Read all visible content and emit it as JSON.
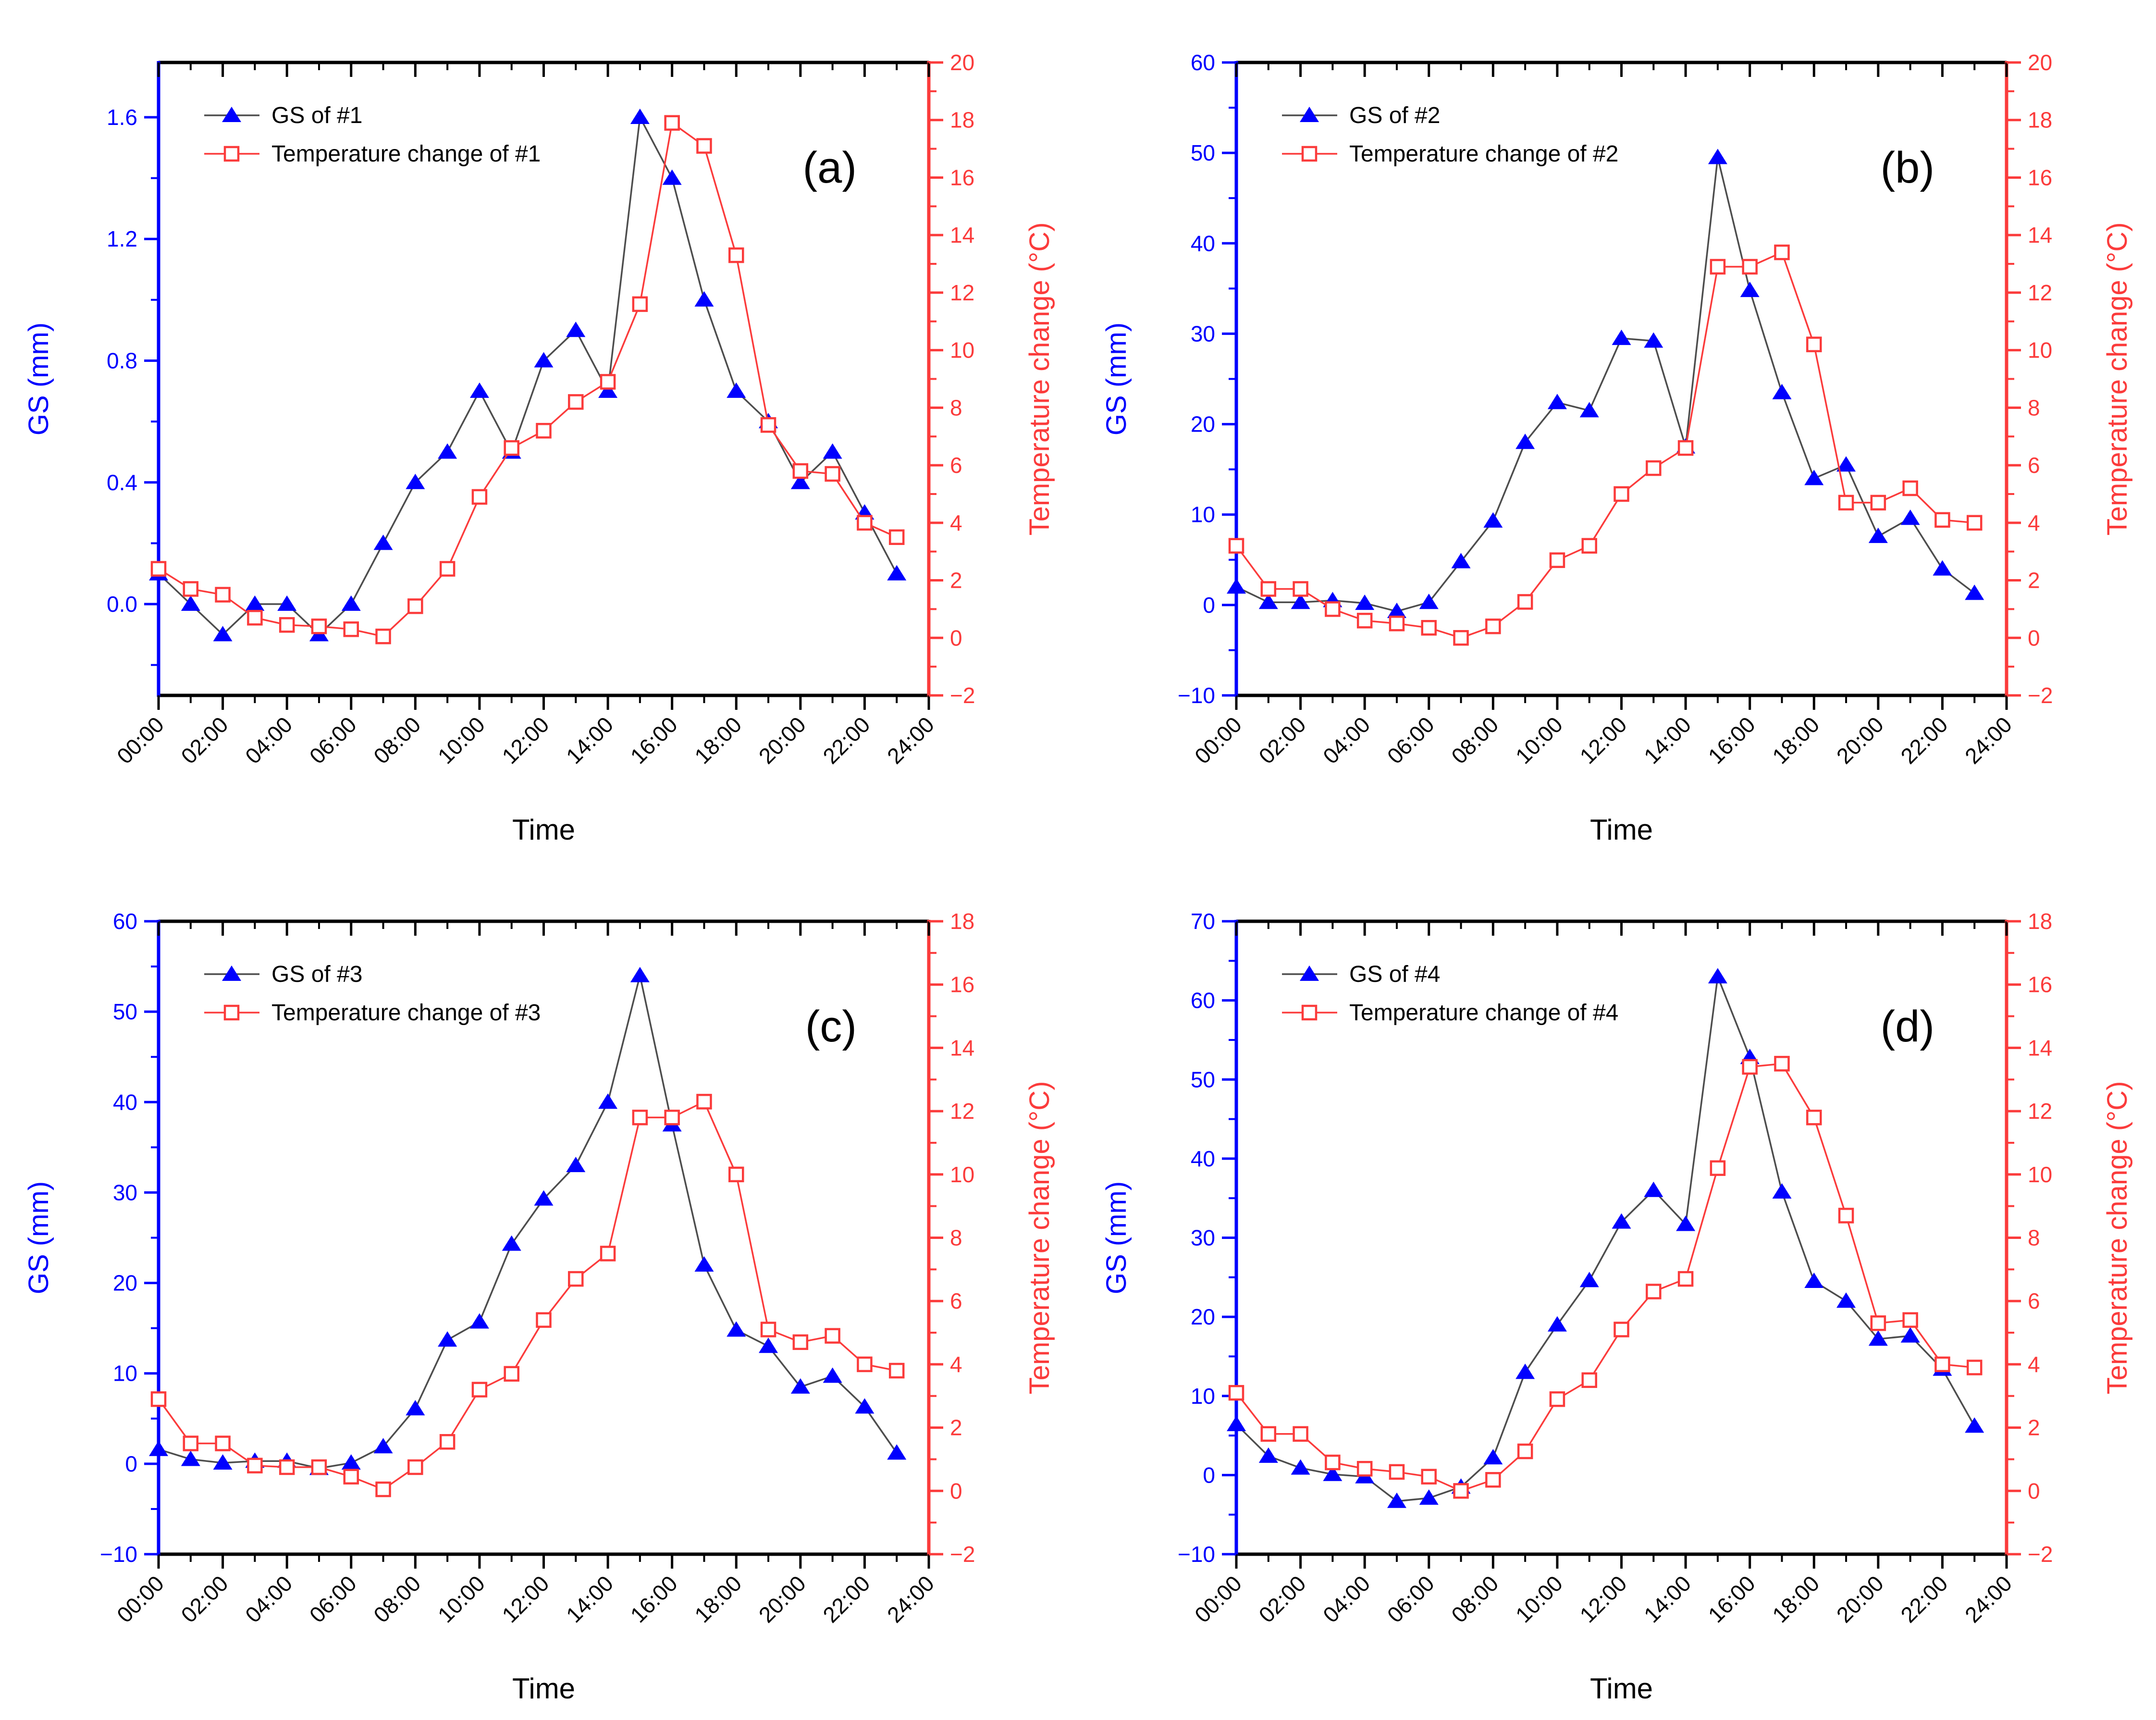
{
  "figure_title": "",
  "colors": {
    "left_axis": "#0000fe",
    "right_axis": "#fb3b3b",
    "gs_marker": "#0000fe",
    "gs_line": "#4d4d4d",
    "temp_color": "#fb3b3b",
    "text_black": "#000000",
    "background": "#ffffff"
  },
  "chart_data": [
    {
      "type": "line",
      "panel_label": "(a)",
      "legend": [
        {
          "label": "GS of #1",
          "marker": "triangle"
        },
        {
          "label": "Temperature change of #1",
          "marker": "square-open"
        }
      ],
      "xlabel": "Time",
      "x_tick_labels": [
        "00:00",
        "02:00",
        "04:00",
        "06:00",
        "08:00",
        "10:00",
        "12:00",
        "14:00",
        "16:00",
        "18:00",
        "20:00",
        "22:00",
        "24:00"
      ],
      "x_range": [
        0,
        24
      ],
      "left_axis": {
        "title": "GS (mm)",
        "min": -0.3,
        "max": 1.78,
        "majors": [
          0.0,
          0.4,
          0.8,
          1.2,
          1.6
        ],
        "labels": [
          "0.0",
          "0.4",
          "0.8",
          "1.2",
          "1.6"
        ]
      },
      "right_axis": {
        "title": "Temperature change (°C)",
        "min": -2,
        "max": 20,
        "majors": [
          -2,
          0,
          2,
          4,
          6,
          8,
          10,
          12,
          14,
          16,
          18,
          20
        ],
        "labels": [
          "−2",
          "0",
          "2",
          "4",
          "6",
          "8",
          "10",
          "12",
          "14",
          "16",
          "18",
          "20"
        ]
      },
      "hours": [
        0,
        1,
        2,
        3,
        4,
        5,
        6,
        7,
        8,
        9,
        10,
        11,
        12,
        13,
        14,
        15,
        16,
        17,
        18,
        19,
        20,
        21,
        22,
        23
      ],
      "series": [
        {
          "name": "GS of #1",
          "axis": "left",
          "marker": "triangle",
          "values": [
            0.1,
            0.0,
            -0.1,
            0.0,
            0.0,
            -0.1,
            0.0,
            0.2,
            0.4,
            0.5,
            0.7,
            0.5,
            0.8,
            0.9,
            0.7,
            1.6,
            1.4,
            1.0,
            0.7,
            0.6,
            0.4,
            0.5,
            0.3,
            0.1
          ]
        },
        {
          "name": "Temperature change of #1",
          "axis": "right",
          "marker": "square-open",
          "values": [
            2.4,
            1.7,
            1.5,
            0.7,
            0.45,
            0.4,
            0.3,
            0.05,
            1.1,
            2.4,
            4.9,
            6.6,
            7.2,
            8.2,
            8.9,
            11.6,
            17.9,
            17.1,
            13.3,
            7.4,
            5.8,
            5.7,
            4.0,
            3.5
          ]
        }
      ]
    },
    {
      "type": "line",
      "panel_label": "(b)",
      "legend": [
        {
          "label": "GS of #2",
          "marker": "triangle"
        },
        {
          "label": "Temperature change of #2",
          "marker": "square-open"
        }
      ],
      "xlabel": "Time",
      "x_tick_labels": [
        "00:00",
        "02:00",
        "04:00",
        "06:00",
        "08:00",
        "10:00",
        "12:00",
        "14:00",
        "16:00",
        "18:00",
        "20:00",
        "22:00",
        "24:00"
      ],
      "x_range": [
        0,
        24
      ],
      "left_axis": {
        "title": "GS (mm)",
        "min": -10,
        "max": 60,
        "majors": [
          -10,
          0,
          10,
          20,
          30,
          40,
          50,
          60
        ],
        "labels": [
          "−10",
          "0",
          "10",
          "20",
          "30",
          "40",
          "50",
          "60"
        ]
      },
      "right_axis": {
        "title": "Temperature change (°C)",
        "min": -2,
        "max": 20,
        "majors": [
          -2,
          0,
          2,
          4,
          6,
          8,
          10,
          12,
          14,
          16,
          18,
          20
        ],
        "labels": [
          "−2",
          "0",
          "2",
          "4",
          "6",
          "8",
          "10",
          "12",
          "14",
          "16",
          "18",
          "20"
        ]
      },
      "hours": [
        0,
        1,
        2,
        3,
        4,
        5,
        6,
        7,
        8,
        9,
        10,
        11,
        12,
        13,
        14,
        15,
        16,
        17,
        18,
        19,
        20,
        21,
        22,
        23
      ],
      "series": [
        {
          "name": "GS of #2",
          "axis": "left",
          "marker": "triangle",
          "values": [
            2.0,
            0.3,
            0.3,
            0.5,
            0.2,
            -0.7,
            0.3,
            4.8,
            9.3,
            18.0,
            22.4,
            21.5,
            29.5,
            29.2,
            17.5,
            49.5,
            34.8,
            23.5,
            14.0,
            15.5,
            7.6,
            9.6,
            4.0,
            1.3
          ]
        },
        {
          "name": "Temperature change of #2",
          "axis": "right",
          "marker": "square-open",
          "values": [
            3.2,
            1.7,
            1.7,
            1.0,
            0.6,
            0.5,
            0.35,
            0.0,
            0.4,
            1.25,
            2.7,
            3.2,
            5.0,
            5.9,
            6.6,
            12.9,
            12.9,
            13.4,
            10.2,
            4.7,
            4.7,
            5.2,
            4.1,
            4.0
          ]
        }
      ]
    },
    {
      "type": "line",
      "panel_label": "(c)",
      "legend": [
        {
          "label": "GS of #3",
          "marker": "triangle"
        },
        {
          "label": "Temperature change of #3",
          "marker": "square-open"
        }
      ],
      "xlabel": "Time",
      "x_tick_labels": [
        "00:00",
        "02:00",
        "04:00",
        "06:00",
        "08:00",
        "10:00",
        "12:00",
        "14:00",
        "16:00",
        "18:00",
        "20:00",
        "22:00",
        "24:00"
      ],
      "x_range": [
        0,
        24
      ],
      "left_axis": {
        "title": "GS (mm)",
        "min": -10,
        "max": 60,
        "majors": [
          -10,
          0,
          10,
          20,
          30,
          40,
          50,
          60
        ],
        "labels": [
          "−10",
          "0",
          "10",
          "20",
          "30",
          "40",
          "50",
          "60"
        ]
      },
      "right_axis": {
        "title": "Temperature change (°C)",
        "min": -2,
        "max": 18,
        "majors": [
          -2,
          0,
          2,
          4,
          6,
          8,
          10,
          12,
          14,
          16,
          18
        ],
        "labels": [
          "−2",
          "0",
          "2",
          "4",
          "6",
          "8",
          "10",
          "12",
          "14",
          "16",
          "18"
        ]
      },
      "hours": [
        0,
        1,
        2,
        3,
        4,
        5,
        6,
        7,
        8,
        9,
        10,
        11,
        12,
        13,
        14,
        15,
        16,
        17,
        18,
        19,
        20,
        21,
        22,
        23
      ],
      "series": [
        {
          "name": "GS of #3",
          "axis": "left",
          "marker": "triangle",
          "values": [
            1.6,
            0.5,
            0.1,
            0.3,
            0.3,
            -0.5,
            0.1,
            1.9,
            6.1,
            13.7,
            15.7,
            24.3,
            29.3,
            33.0,
            40.0,
            54.0,
            37.5,
            22.0,
            14.8,
            13.0,
            8.5,
            9.7,
            6.3,
            1.2
          ]
        },
        {
          "name": "Temperature change of #3",
          "axis": "right",
          "marker": "square-open",
          "values": [
            2.9,
            1.5,
            1.5,
            0.8,
            0.75,
            0.75,
            0.45,
            0.05,
            0.75,
            1.55,
            3.2,
            3.7,
            5.4,
            6.7,
            7.5,
            11.8,
            11.8,
            12.3,
            10.0,
            5.1,
            4.7,
            4.9,
            4.0,
            3.8
          ]
        }
      ]
    },
    {
      "type": "line",
      "panel_label": "(d)",
      "legend": [
        {
          "label": "GS of #4",
          "marker": "triangle"
        },
        {
          "label": "Temperature change of #4",
          "marker": "square-open"
        }
      ],
      "xlabel": "Time",
      "x_tick_labels": [
        "00:00",
        "02:00",
        "04:00",
        "06:00",
        "08:00",
        "10:00",
        "12:00",
        "14:00",
        "16:00",
        "18:00",
        "20:00",
        "22:00",
        "24:00"
      ],
      "x_range": [
        0,
        24
      ],
      "left_axis": {
        "title": "GS (mm)",
        "min": -10,
        "max": 70,
        "majors": [
          -10,
          0,
          10,
          20,
          30,
          40,
          50,
          60,
          70
        ],
        "labels": [
          "−10",
          "0",
          "10",
          "20",
          "30",
          "40",
          "50",
          "60",
          "70"
        ]
      },
      "right_axis": {
        "title": "Temperature change (°C)",
        "min": -2,
        "max": 18,
        "majors": [
          -2,
          0,
          2,
          4,
          6,
          8,
          10,
          12,
          14,
          16,
          18
        ],
        "labels": [
          "−2",
          "0",
          "2",
          "4",
          "6",
          "8",
          "10",
          "12",
          "14",
          "16",
          "18"
        ]
      },
      "hours": [
        0,
        1,
        2,
        3,
        4,
        5,
        6,
        7,
        8,
        9,
        10,
        11,
        12,
        13,
        14,
        15,
        16,
        17,
        18,
        19,
        20,
        21,
        22,
        23
      ],
      "series": [
        {
          "name": "GS of #4",
          "axis": "left",
          "marker": "triangle",
          "values": [
            6.4,
            2.4,
            0.9,
            0.1,
            -0.2,
            -3.3,
            -2.9,
            -1.5,
            2.2,
            13.0,
            19.0,
            24.6,
            32.0,
            36.0,
            31.7,
            63.0,
            52.8,
            35.8,
            24.5,
            22.0,
            17.2,
            17.6,
            13.4,
            6.2
          ]
        },
        {
          "name": "Temperature change of #4",
          "axis": "right",
          "marker": "square-open",
          "values": [
            3.1,
            1.8,
            1.8,
            0.9,
            0.7,
            0.6,
            0.45,
            0.0,
            0.35,
            1.25,
            2.9,
            3.5,
            5.1,
            6.3,
            6.7,
            10.2,
            13.4,
            13.5,
            11.8,
            8.7,
            5.3,
            5.4,
            4.0,
            3.9
          ]
        }
      ]
    }
  ]
}
